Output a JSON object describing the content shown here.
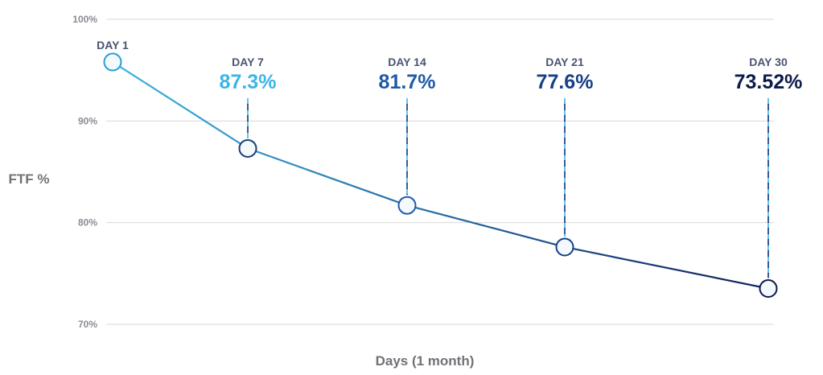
{
  "chart_data": {
    "type": "line",
    "xlabel": "Days (1 month)",
    "ylabel": "FTF %",
    "ylim": [
      70,
      100
    ],
    "yticks": [
      {
        "value": 100,
        "label": "100%"
      },
      {
        "value": 90,
        "label": "90%"
      },
      {
        "value": 80,
        "label": "80%"
      },
      {
        "value": 70,
        "label": "70%"
      }
    ],
    "grid": true,
    "points": [
      {
        "day": 1,
        "label": "DAY 1",
        "value": 95.8,
        "value_label": "",
        "color": "#2a9fd6"
      },
      {
        "day": 7,
        "label": "DAY 7",
        "value": 87.3,
        "value_label": "87.3%",
        "color": "#3ab6e6"
      },
      {
        "day": 14,
        "label": "DAY 14",
        "value": 81.7,
        "value_label": "81.7%",
        "color": "#1e5aa8"
      },
      {
        "day": 21,
        "label": "DAY 21",
        "value": 77.6,
        "value_label": "77.6%",
        "color": "#173f86"
      },
      {
        "day": 30,
        "label": "DAY 30",
        "value": 73.52,
        "value_label": "73.52%",
        "color": "#0d1a4a"
      }
    ],
    "colors": {
      "line_start": "#3cb3e3",
      "line_end": "#0e1f5c",
      "marker_fill": "#f4f9fd",
      "grid": "#d9d9d9"
    }
  }
}
